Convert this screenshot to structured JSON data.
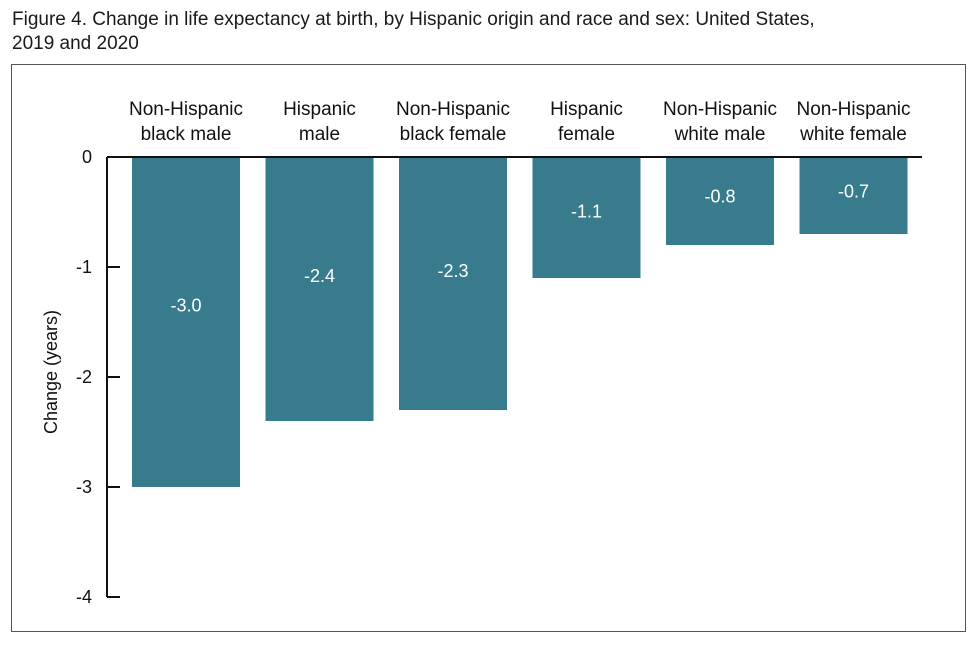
{
  "figure": {
    "title_line1": "Figure 4. Change in life expectancy at birth, by Hispanic origin and race and sex: United States,",
    "title_line2": "2019 and 2020"
  },
  "chart_data": {
    "type": "bar",
    "title": "Figure 4. Change in life expectancy at birth, by Hispanic origin and race and sex: United States, 2019 and 2020",
    "categories": [
      [
        "Non-Hispanic",
        "black male"
      ],
      [
        "Hispanic",
        "male"
      ],
      [
        "Non-Hispanic",
        "black female"
      ],
      [
        "Hispanic",
        "female"
      ],
      [
        "Non-Hispanic",
        "white male"
      ],
      [
        "Non-Hispanic",
        "white female"
      ]
    ],
    "values": [
      -3.0,
      -2.4,
      -2.3,
      -1.1,
      -0.8,
      -0.7
    ],
    "data_labels": [
      "-3.0",
      "-2.4",
      "-2.3",
      "-1.1",
      "-0.8",
      "-0.7"
    ],
    "ylabel": "Change (years)",
    "xlabel": "",
    "ylim": [
      -4,
      0
    ],
    "yticks": [
      0,
      -1,
      -2,
      -3,
      -4
    ],
    "ytick_labels": [
      "0",
      "-1",
      "-2",
      "-3",
      "-4"
    ],
    "bar_color": "#377b8c",
    "category_labels_position": "top",
    "grid": false
  }
}
